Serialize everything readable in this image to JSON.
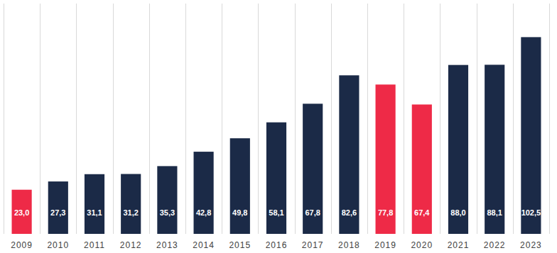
{
  "chart_data": {
    "type": "bar",
    "categories": [
      "2009",
      "2010",
      "2011",
      "2012",
      "2013",
      "2014",
      "2015",
      "2016",
      "2017",
      "2018",
      "2019",
      "2020",
      "2021",
      "2022",
      "2023"
    ],
    "values": [
      23.0,
      27.3,
      31.1,
      31.2,
      35.3,
      42.8,
      49.8,
      58.1,
      67.8,
      82.6,
      77.8,
      67.4,
      88.0,
      88.1,
      102.5
    ],
    "value_labels": [
      "23,0",
      "27,3",
      "31,1",
      "31,2",
      "35,3",
      "42,8",
      "49,8",
      "58,1",
      "67,8",
      "82,6",
      "77,8",
      "67,4",
      "88,0",
      "88,1",
      "102,5"
    ],
    "colors": [
      "#ee2a47",
      "#1b2a47",
      "#1b2a47",
      "#1b2a47",
      "#1b2a47",
      "#1b2a47",
      "#1b2a47",
      "#1b2a47",
      "#1b2a47",
      "#1b2a47",
      "#ee2a47",
      "#ee2a47",
      "#1b2a47",
      "#1b2a47",
      "#1b2a47"
    ],
    "ylim": [
      0,
      120
    ],
    "grid": true,
    "data_labels": true,
    "tick_labels": "x"
  }
}
